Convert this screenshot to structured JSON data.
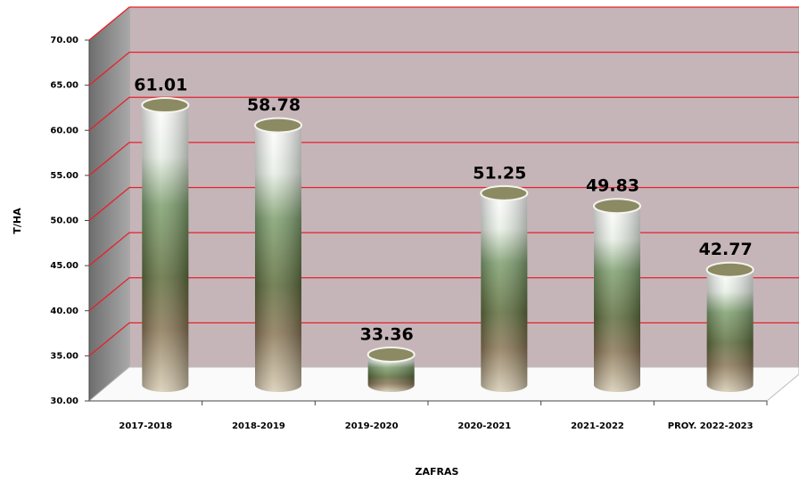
{
  "chart_data": {
    "type": "bar",
    "x_label": "ZAFRAS",
    "y_label": "T/HA",
    "categories": [
      "2017-2018",
      "2018-2019",
      "2019-2020",
      "2020-2021",
      "2021-2022",
      "PROY. 2022-2023"
    ],
    "values": [
      61.01,
      58.78,
      33.36,
      51.25,
      49.83,
      42.77
    ],
    "ylim": [
      30,
      70
    ],
    "yticks": [
      {
        "value": 30,
        "label": "30.00"
      },
      {
        "value": 35,
        "label": "35.00"
      },
      {
        "value": 40,
        "label": "40.00"
      },
      {
        "value": 45,
        "label": "45.00"
      },
      {
        "value": 50,
        "label": "50.00"
      },
      {
        "value": 55,
        "label": "55.00"
      },
      {
        "value": 60,
        "label": "60.00"
      },
      {
        "value": 65,
        "label": "65.00"
      },
      {
        "value": 70,
        "label": "70.00"
      }
    ],
    "grid": true,
    "grid_color": "#e8202a",
    "wall_color": "#c5b5b9"
  }
}
